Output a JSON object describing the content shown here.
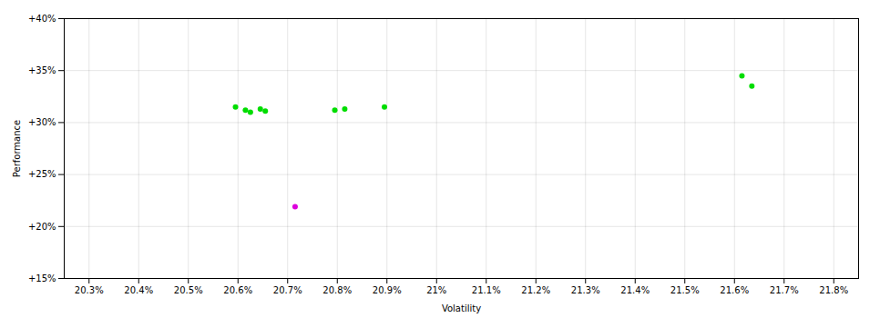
{
  "chart_data": {
    "type": "scatter",
    "xlabel": "Volatility",
    "ylabel": "Performance",
    "xlim": [
      20.25,
      21.85
    ],
    "ylim": [
      15,
      40
    ],
    "xticks": [
      {
        "value": 20.3,
        "label": "20.3%"
      },
      {
        "value": 20.4,
        "label": "20.4%"
      },
      {
        "value": 20.5,
        "label": "20.5%"
      },
      {
        "value": 20.6,
        "label": "20.6%"
      },
      {
        "value": 20.7,
        "label": "20.7%"
      },
      {
        "value": 20.8,
        "label": "20.8%"
      },
      {
        "value": 20.9,
        "label": "20.9%"
      },
      {
        "value": 21.0,
        "label": "21%"
      },
      {
        "value": 21.1,
        "label": "21.1%"
      },
      {
        "value": 21.2,
        "label": "21.2%"
      },
      {
        "value": 21.3,
        "label": "21.3%"
      },
      {
        "value": 21.4,
        "label": "21.4%"
      },
      {
        "value": 21.5,
        "label": "21.5%"
      },
      {
        "value": 21.6,
        "label": "21.6%"
      },
      {
        "value": 21.7,
        "label": "21.7%"
      },
      {
        "value": 21.8,
        "label": "21.8%"
      }
    ],
    "yticks": [
      {
        "value": 15,
        "label": "+15%"
      },
      {
        "value": 20,
        "label": "+20%"
      },
      {
        "value": 25,
        "label": "+25%"
      },
      {
        "value": 30,
        "label": "+30%"
      },
      {
        "value": 35,
        "label": "+35%"
      },
      {
        "value": 40,
        "label": "+40%"
      }
    ],
    "grid": true,
    "series": [
      {
        "color": "#00dd00",
        "x": [
          20.595,
          20.615,
          20.625,
          20.645,
          20.655,
          20.795,
          20.815,
          20.895,
          21.615,
          21.635
        ],
        "y": [
          31.5,
          31.2,
          31.0,
          31.3,
          31.1,
          31.2,
          31.3,
          31.5,
          34.5,
          33.5
        ]
      },
      {
        "color": "#dd00dd",
        "x": [
          20.715
        ],
        "y": [
          21.9
        ]
      }
    ]
  }
}
